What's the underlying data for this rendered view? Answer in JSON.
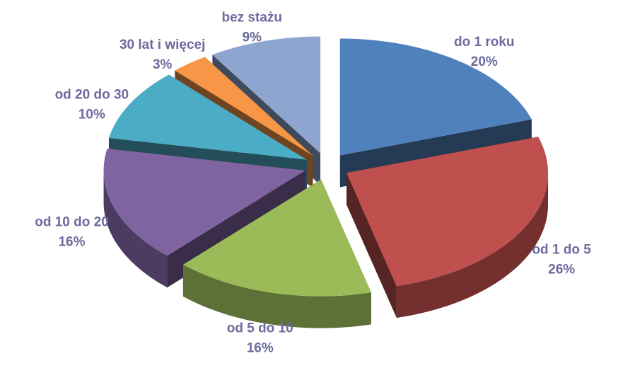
{
  "chart_data": {
    "type": "pie",
    "categories": [
      "do 1 roku",
      "od 1 do 5",
      "od 5 do 10",
      "od 10 do 20",
      "od 20 do 30",
      "30 lat i więcej",
      "bez stażu"
    ],
    "values": [
      20,
      26,
      16,
      16,
      10,
      3,
      9
    ],
    "value_labels": [
      "20%",
      "26%",
      "16%",
      "16%",
      "10%",
      "3%",
      "9%"
    ],
    "colors": [
      "#4f81bd",
      "#c0504d",
      "#9bbb59",
      "#8064a2",
      "#4bacc6",
      "#f79646",
      "#8ea5cf"
    ]
  }
}
